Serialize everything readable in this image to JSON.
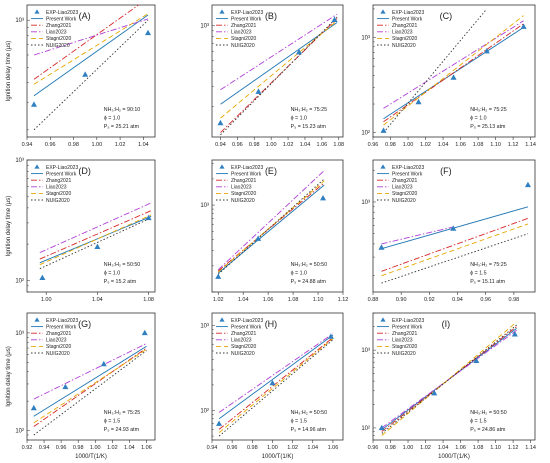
{
  "figure": {
    "legend_entries": [
      {
        "label": "EXP-Liao2023",
        "color": "#2f7fc1",
        "style": "marker"
      },
      {
        "label": "Present Work",
        "color": "#1f77b4",
        "style": "solid"
      },
      {
        "label": "Zhang2021",
        "color": "#d62728",
        "style": "dashdot"
      },
      {
        "label": "Liao2023",
        "color": "#b03fd6",
        "style": "dashdot"
      },
      {
        "label": "Stagni2020",
        "color": "#e6a800",
        "style": "dash"
      },
      {
        "label": "NUIG2020",
        "color": "#333333",
        "style": "dot"
      }
    ]
  },
  "chart_data": [
    {
      "type": "line",
      "panel": "(A)",
      "log_y": true,
      "ylabel": "Ignition delay time (μs)",
      "xlabel": "",
      "xlim": [
        0.94,
        1.05
      ],
      "xticks": [
        "0.94",
        "0.96",
        "0.98",
        "1.00",
        "1.02",
        "1.04"
      ],
      "ylim": [
        180,
        1250
      ],
      "yticks": [
        {
          "v": 1000,
          "label": "10³"
        }
      ],
      "annotation": [
        "NH₃:H₂ = 90:10",
        "ϕ = 1.0",
        "P₅ = 25.21 atm"
      ],
      "legend_items": [
        "EXP-Liao2023",
        "Present Work",
        "Zhang2021",
        "Liao2023",
        "Stagni2020",
        "NUIG2020"
      ],
      "experiment": {
        "x": [
          0.946,
          0.99,
          1.044
        ],
        "y": [
          290,
          450,
          830
        ]
      },
      "series": [
        {
          "name": "Present Work",
          "x": [
            0.946,
            1.044
          ],
          "y": [
            330,
            1080
          ]
        },
        {
          "name": "Zhang2021",
          "x": [
            0.946,
            1.044
          ],
          "y": [
            420,
            1380
          ]
        },
        {
          "name": "Liao2023",
          "x": [
            0.946,
            1.044
          ],
          "y": [
            600,
            1020
          ]
        },
        {
          "name": "Stagni2020",
          "x": [
            0.946,
            1.044
          ],
          "y": [
            390,
            1100
          ]
        },
        {
          "name": "NUIG2020",
          "x": [
            0.946,
            1.044
          ],
          "y": [
            200,
            1000
          ]
        }
      ]
    },
    {
      "type": "line",
      "panel": "(B)",
      "log_y": true,
      "ylabel": "",
      "xlabel": "",
      "xlim": [
        0.93,
        1.085
      ],
      "xticks": [
        "0.94",
        "0.96",
        "0.98",
        "1.00",
        "1.02",
        "1.04",
        "1.06",
        "1.08"
      ],
      "ylim": [
        110,
        1500
      ],
      "yticks": [
        {
          "v": 1000,
          "label": "10³"
        }
      ],
      "annotation": [
        "NH₃:H₂ = 75:25",
        "ϕ = 1.0",
        "P₅ = 15.23 atm"
      ],
      "legend_items": [
        "EXP-Liao2023",
        "Present Work",
        "Zhang2021",
        "Liao2023",
        "Stagni2020",
        "NUIG2020"
      ],
      "experiment": {
        "x": [
          0.94,
          0.985,
          1.033,
          1.075
        ],
        "y": [
          145,
          270,
          590,
          1120
        ]
      },
      "series": [
        {
          "name": "Present Work",
          "x": [
            0.94,
            1.078
          ],
          "y": [
            210,
            1060
          ]
        },
        {
          "name": "Zhang2021",
          "x": [
            0.94,
            1.078
          ],
          "y": [
            120,
            1150
          ]
        },
        {
          "name": "Liao2023",
          "x": [
            0.94,
            1.078
          ],
          "y": [
            280,
            1250
          ]
        },
        {
          "name": "Stagni2020",
          "x": [
            0.94,
            1.078
          ],
          "y": [
            160,
            1100
          ]
        },
        {
          "name": "NUIG2020",
          "x": [
            0.94,
            1.078
          ],
          "y": [
            115,
            1180
          ]
        }
      ]
    },
    {
      "type": "line",
      "panel": "(C)",
      "log_y": true,
      "ylabel": "",
      "xlabel": "",
      "xlim": [
        0.96,
        1.145
      ],
      "xticks": [
        "0.96",
        "0.98",
        "1.00",
        "1.02",
        "1.04",
        "1.06",
        "1.08",
        "1.10",
        "1.12",
        "1.14"
      ],
      "ylim": [
        90,
        2200
      ],
      "yticks": [
        {
          "v": 100,
          "label": "10²"
        },
        {
          "v": 1000,
          "label": "10³"
        }
      ],
      "annotation": [
        "NH₃:H₂ = 75:25",
        "ϕ = 1.0",
        "P₅ = 25.13 atm"
      ],
      "legend_items": [
        "EXP-Liao2023",
        "Present Work",
        "Zhang2021",
        "Liao2023",
        "Stagni2020",
        "NUIG2020"
      ],
      "experiment": {
        "x": [
          0.972,
          1.012,
          1.052,
          1.09,
          1.132
        ],
        "y": [
          105,
          210,
          380,
          720,
          1300
        ]
      },
      "series": [
        {
          "name": "Present Work",
          "x": [
            0.972,
            1.132
          ],
          "y": [
            140,
            1280
          ]
        },
        {
          "name": "Zhang2021",
          "x": [
            0.972,
            1.132
          ],
          "y": [
            130,
            1400
          ]
        },
        {
          "name": "Liao2023",
          "x": [
            0.972,
            1.132
          ],
          "y": [
            180,
            1500
          ]
        },
        {
          "name": "Stagni2020",
          "x": [
            0.972,
            1.132
          ],
          "y": [
            120,
            1700
          ]
        },
        {
          "name": "NUIG2020",
          "x": [
            0.972,
            1.09
          ],
          "y": [
            100,
            2000
          ]
        }
      ]
    },
    {
      "type": "line",
      "panel": "(D)",
      "log_y": true,
      "ylabel": "Ignition delay time (μs)",
      "xlabel": "",
      "xlim": [
        0.985,
        1.085
      ],
      "xticks": [
        "1.00",
        "1.04",
        "1.08"
      ],
      "ylim": [
        80,
        1000
      ],
      "yticks": [
        {
          "v": 100,
          "label": "10²"
        },
        {
          "v": 1000,
          "label": "10³"
        }
      ],
      "annotation": [
        "NH₃:H₂ = 50:50",
        "ϕ = 1.0",
        "P₅ = 15.2 atm"
      ],
      "legend_items": [
        "EXP-Liao2023",
        "Present Work",
        "Zhang2021",
        "Liao2023",
        "Stagni2020",
        "NUIG2020"
      ],
      "experiment": {
        "x": [
          0.997,
          1.04,
          1.08
        ],
        "y": [
          105,
          190,
          330
        ]
      },
      "series": [
        {
          "name": "Present Work",
          "x": [
            0.995,
            1.082
          ],
          "y": [
            140,
            340
          ]
        },
        {
          "name": "Zhang2021",
          "x": [
            0.995,
            1.082
          ],
          "y": [
            150,
            380
          ]
        },
        {
          "name": "Liao2023",
          "x": [
            0.995,
            1.082
          ],
          "y": [
            170,
            440
          ]
        },
        {
          "name": "Stagni2020",
          "x": [
            0.995,
            1.082
          ],
          "y": [
            135,
            350
          ]
        },
        {
          "name": "NUIG2020",
          "x": [
            0.995,
            1.082
          ],
          "y": [
            125,
            330
          ]
        }
      ]
    },
    {
      "type": "line",
      "panel": "(E)",
      "log_y": true,
      "ylabel": "",
      "xlabel": "",
      "xlim": [
        1.015,
        1.12
      ],
      "xticks": [
        "1.02",
        "1.04",
        "1.06",
        "1.08",
        "1.10",
        "1.12"
      ],
      "ylim": [
        100,
        3300
      ],
      "yticks": [
        {
          "v": 1000,
          "label": "10³"
        }
      ],
      "annotation": [
        "NH₃:H₂ = 50:50",
        "ϕ = 1.0",
        "P₅ = 24.88 atm"
      ],
      "legend_items": [
        "EXP-Liao2023",
        "Present Work",
        "Zhang2021",
        "Liao2023",
        "Stagni2020",
        "NUIG2020"
      ],
      "experiment": {
        "x": [
          1.02,
          1.052,
          1.104
        ],
        "y": [
          150,
          410,
          1200
        ]
      },
      "series": [
        {
          "name": "Present Work",
          "x": [
            1.02,
            1.105
          ],
          "y": [
            165,
            1700
          ]
        },
        {
          "name": "Zhang2021",
          "x": [
            1.02,
            1.105
          ],
          "y": [
            175,
            1800
          ]
        },
        {
          "name": "Liao2023",
          "x": [
            1.02,
            1.105
          ],
          "y": [
            180,
            2500
          ]
        },
        {
          "name": "Stagni2020",
          "x": [
            1.02,
            1.105
          ],
          "y": [
            170,
            1900
          ]
        },
        {
          "name": "NUIG2020",
          "x": [
            1.02,
            1.105
          ],
          "y": [
            160,
            2000
          ]
        }
      ]
    },
    {
      "type": "line",
      "panel": "(F)",
      "log_y": true,
      "ylabel": "",
      "xlabel": "",
      "xlim": [
        0.88,
        0.995
      ],
      "xticks": [
        "0.88",
        "0.90",
        "0.92",
        "0.94",
        "0.96",
        "0.98"
      ],
      "ylim": [
        140,
        2500
      ],
      "yticks": [
        {
          "v": 1000,
          "label": "10³"
        }
      ],
      "annotation": [
        "NH₃:H₂ = 75:25",
        "ϕ = 1.5",
        "P₅ = 15.11 atm"
      ],
      "legend_items": [
        "EXP-Liao2023",
        "Present Work",
        "Zhang2021",
        "Liao2023",
        "Stagni2020",
        "NUIG2020"
      ],
      "experiment": {
        "x": [
          0.886,
          0.937,
          0.99
        ],
        "y": [
          370,
          560,
          1450
        ]
      },
      "series": [
        {
          "name": "Present Work",
          "x": [
            0.886,
            0.99
          ],
          "y": [
            360,
            900
          ]
        },
        {
          "name": "Zhang2021",
          "x": [
            0.886,
            0.99
          ],
          "y": [
            220,
            700
          ]
        },
        {
          "name": "Liao2023",
          "x": [
            0.886,
            0.937
          ],
          "y": [
            400,
            580
          ]
        },
        {
          "name": "Stagni2020",
          "x": [
            0.886,
            0.99
          ],
          "y": [
            200,
            620
          ]
        },
        {
          "name": "NUIG2020",
          "x": [
            0.886,
            0.99
          ],
          "y": [
            170,
            500
          ]
        }
      ]
    },
    {
      "type": "line",
      "panel": "(G)",
      "log_y": true,
      "ylabel": "Ignition delay time (μs)",
      "xlabel": "1000/T(1/K)",
      "xlim": [
        0.92,
        1.07
      ],
      "xticks": [
        "0.92",
        "0.94",
        "0.96",
        "0.98",
        "1.00",
        "1.02",
        "1.04",
        "1.06"
      ],
      "ylim": [
        80,
        1600
      ],
      "yticks": [
        {
          "v": 100,
          "label": "10²"
        },
        {
          "v": 1000,
          "label": "10³"
        }
      ],
      "annotation": [
        "NH₃:H₂ = 75:25",
        "ϕ = 1.5",
        "P₅ = 24.93 atm"
      ],
      "legend_items": [
        "EXP-Liao2023",
        "Present Work",
        "Zhang2021",
        "Liao2023",
        "Stagni2020",
        "NUIG2020"
      ],
      "experiment": {
        "x": [
          0.928,
          0.965,
          1.01,
          1.058
        ],
        "y": [
          170,
          280,
          480,
          1000
        ]
      },
      "series": [
        {
          "name": "Present Work",
          "x": [
            0.928,
            1.06
          ],
          "y": [
            140,
            730
          ]
        },
        {
          "name": "Zhang2021",
          "x": [
            0.928,
            1.06
          ],
          "y": [
            110,
            700
          ]
        },
        {
          "name": "Liao2023",
          "x": [
            0.928,
            1.06
          ],
          "y": [
            210,
            780
          ]
        },
        {
          "name": "Stagni2020",
          "x": [
            0.928,
            1.06
          ],
          "y": [
            120,
            680
          ]
        },
        {
          "name": "NUIG2020",
          "x": [
            0.928,
            1.06
          ],
          "y": [
            90,
            660
          ]
        }
      ]
    },
    {
      "type": "line",
      "panel": "(H)",
      "log_y": true,
      "ylabel": "",
      "xlabel": "1000/T(1/K)",
      "xlim": [
        0.94,
        1.07
      ],
      "xticks": [
        "0.94",
        "0.96",
        "0.98",
        "1.00",
        "1.02",
        "1.04",
        "1.06"
      ],
      "ylim": [
        45,
        1400
      ],
      "yticks": [
        {
          "v": 100,
          "label": "10²"
        },
        {
          "v": 1000,
          "label": "10³"
        }
      ],
      "annotation": [
        "NH₃:H₂ = 50:50",
        "ϕ = 1.5",
        "P₅ = 14.96 atm"
      ],
      "legend_items": [
        "EXP-Liao2023",
        "Present Work",
        "Zhang2021",
        "Liao2023",
        "Stagni2020",
        "NUIG2020"
      ],
      "experiment": {
        "x": [
          0.947,
          1.0,
          1.058
        ],
        "y": [
          70,
          210,
          740
        ]
      },
      "series": [
        {
          "name": "Present Work",
          "x": [
            0.947,
            1.06
          ],
          "y": [
            80,
            770
          ]
        },
        {
          "name": "Zhang2021",
          "x": [
            0.947,
            1.06
          ],
          "y": [
            60,
            720
          ]
        },
        {
          "name": "Liao2023",
          "x": [
            0.947,
            1.06
          ],
          "y": [
            95,
            800
          ]
        },
        {
          "name": "Stagni2020",
          "x": [
            0.947,
            1.06
          ],
          "y": [
            55,
            700
          ]
        },
        {
          "name": "NUIG2020",
          "x": [
            0.947,
            1.06
          ],
          "y": [
            50,
            680
          ]
        }
      ]
    },
    {
      "type": "line",
      "panel": "(I)",
      "log_y": true,
      "ylabel": "",
      "xlabel": "1000/T(1/K)",
      "xlim": [
        0.96,
        1.145
      ],
      "xticks": [
        "0.96",
        "0.98",
        "1.00",
        "1.02",
        "1.04",
        "1.06",
        "1.08",
        "1.10",
        "1.12",
        "1.14"
      ],
      "ylim": [
        70,
        3000
      ],
      "yticks": [
        {
          "v": 100,
          "label": "10²"
        },
        {
          "v": 1000,
          "label": "10³"
        }
      ],
      "annotation": [
        "NH₃:H₂ = 50:50",
        "ϕ = 1.5",
        "P₅ = 24.86 atm"
      ],
      "legend_items": [
        "EXP-Liao2023",
        "Present Work",
        "Zhang2021",
        "Liao2023",
        "Stagni2020",
        "NUIG2020"
      ],
      "experiment": {
        "x": [
          0.97,
          1.03,
          1.078,
          1.122
        ],
        "y": [
          100,
          280,
          730,
          1600
        ]
      },
      "series": [
        {
          "name": "Present Work",
          "x": [
            0.97,
            1.124
          ],
          "y": [
            95,
            1900
          ]
        },
        {
          "name": "Zhang2021",
          "x": [
            0.97,
            1.124
          ],
          "y": [
            90,
            2000
          ]
        },
        {
          "name": "Liao2023",
          "x": [
            0.97,
            1.124
          ],
          "y": [
            100,
            1800
          ]
        },
        {
          "name": "Stagni2020",
          "x": [
            0.97,
            1.124
          ],
          "y": [
            80,
            2300
          ]
        },
        {
          "name": "NUIG2020",
          "x": [
            0.97,
            1.124
          ],
          "y": [
            85,
            2100
          ]
        }
      ]
    }
  ]
}
